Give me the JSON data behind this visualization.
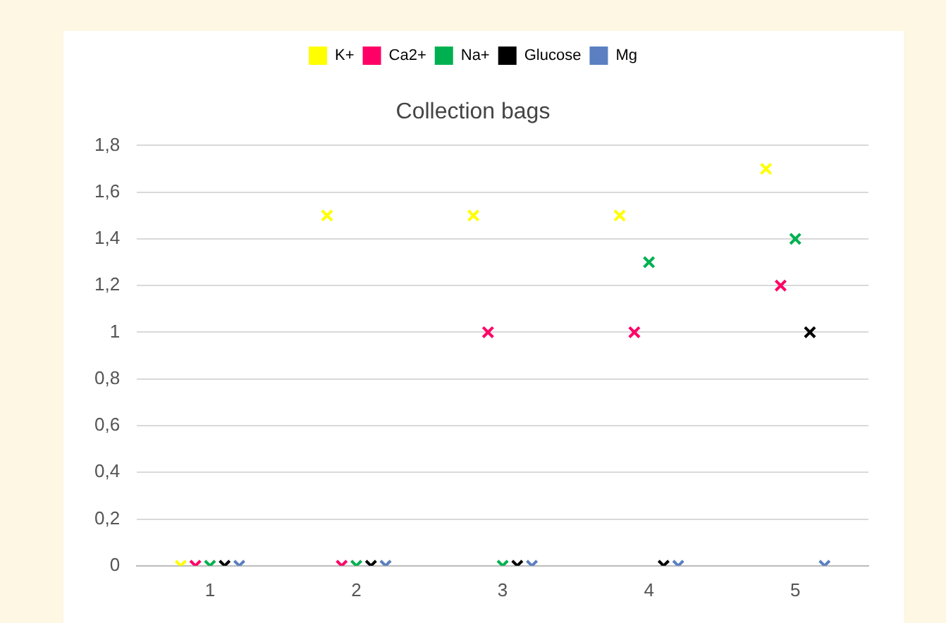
{
  "chart_data": {
    "type": "scatter",
    "title": "Collection bags",
    "categories": [
      "1",
      "2",
      "3",
      "4",
      "5"
    ],
    "series": [
      {
        "name": "K+",
        "color": "#ffff00",
        "values": [
          0,
          1.5,
          1.5,
          1.5,
          1.7
        ]
      },
      {
        "name": "Ca2+",
        "color": "#ff0066",
        "values": [
          0,
          0,
          1,
          1,
          1.2
        ]
      },
      {
        "name": "Na+",
        "color": "#00b050",
        "values": [
          0,
          0,
          0,
          1.3,
          1.4
        ]
      },
      {
        "name": "Glucose",
        "color": "#000000",
        "values": [
          0,
          0,
          0,
          0,
          1
        ]
      },
      {
        "name": "Mg",
        "color": "#5b7fc0",
        "values": [
          0,
          0,
          0,
          0,
          0
        ]
      }
    ],
    "ylim": [
      0,
      1.8
    ],
    "yticks": [
      0,
      {
        "value": 0.2,
        "label": "0,2"
      },
      {
        "value": 0.4,
        "label": "0,4"
      },
      {
        "value": 0.6,
        "label": "0,6"
      },
      {
        "value": 0.8,
        "label": "0,8"
      },
      1,
      {
        "value": 1.2,
        "label": "1,2"
      },
      {
        "value": 1.4,
        "label": "1,4"
      },
      {
        "value": 1.6,
        "label": "1,6"
      },
      {
        "value": 1.8,
        "label": "1,8"
      }
    ],
    "grid": "y",
    "legend": "top",
    "marker": "cross"
  }
}
